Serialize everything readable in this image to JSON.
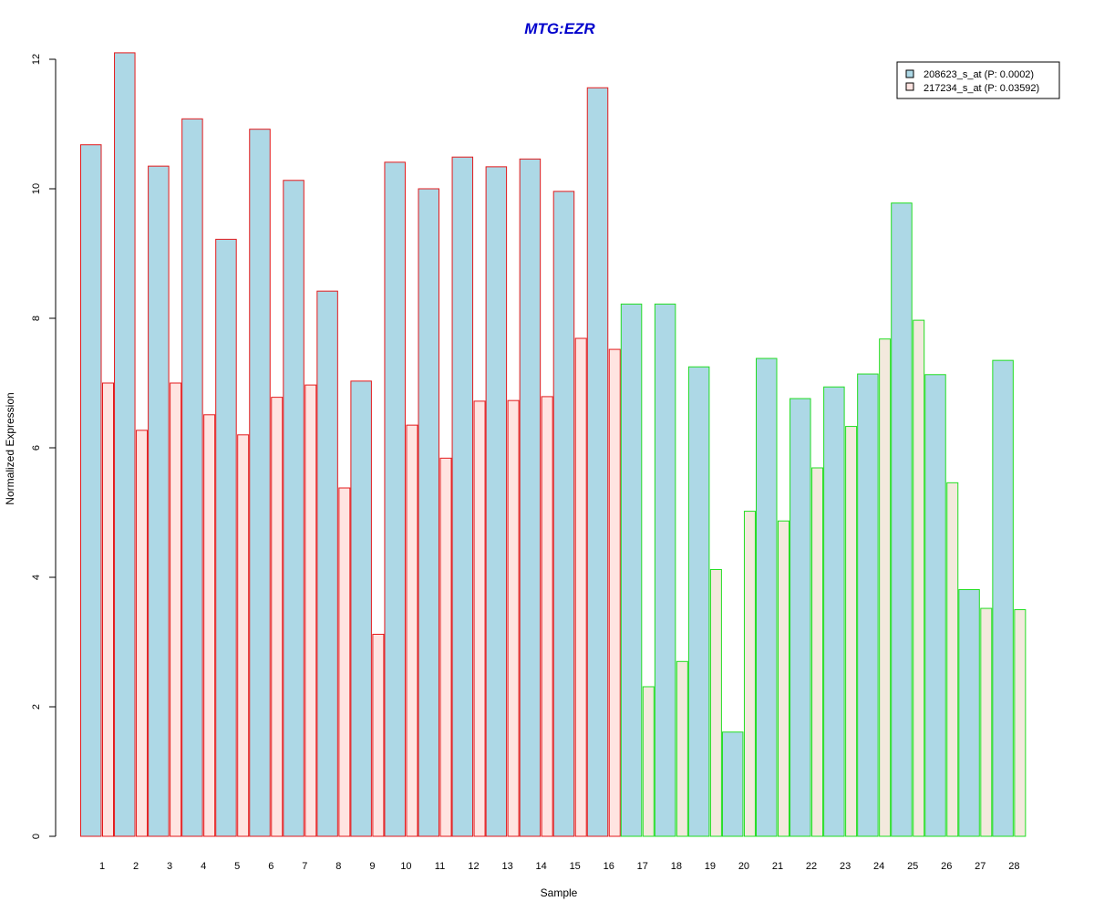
{
  "chart_data": {
    "type": "bar",
    "title": "MTG:EZR",
    "xlabel": "Sample",
    "ylabel": "Normalized Expression",
    "ylim": [
      0,
      12.2
    ],
    "yticks": [
      0,
      2,
      4,
      6,
      8,
      10,
      12
    ],
    "categories": [
      "1",
      "2",
      "3",
      "4",
      "5",
      "6",
      "7",
      "8",
      "9",
      "10",
      "11",
      "12",
      "13",
      "14",
      "15",
      "16",
      "17",
      "18",
      "19",
      "20",
      "21",
      "22",
      "23",
      "24",
      "25",
      "26",
      "27",
      "28"
    ],
    "series": [
      {
        "name": "208623_s_at (P: 0.0002)",
        "fill": "#add8e6",
        "values": [
          10.68,
          12.1,
          10.35,
          11.08,
          9.22,
          10.92,
          10.13,
          8.42,
          7.03,
          10.41,
          10.0,
          10.49,
          10.34,
          10.46,
          9.96,
          11.56,
          8.22,
          8.22,
          7.25,
          1.61,
          7.38,
          6.76,
          6.94,
          7.14,
          9.78,
          7.13,
          3.81,
          7.35
        ]
      },
      {
        "name": "217234_s_at (P: 0.03592)",
        "fill_group1": "#ffe4e1",
        "fill_group2": "#f3e9dd",
        "values": [
          7.0,
          6.27,
          7.0,
          6.51,
          6.2,
          6.78,
          6.97,
          5.38,
          3.12,
          6.35,
          5.84,
          6.72,
          6.73,
          6.79,
          7.69,
          7.52,
          2.31,
          2.7,
          4.12,
          5.02,
          4.87,
          5.69,
          6.33,
          7.68,
          7.97,
          5.46,
          3.52,
          3.5
        ]
      }
    ],
    "groups": [
      {
        "samples": [
          1,
          16
        ],
        "border": "#e31a1c"
      },
      {
        "samples": [
          17,
          28
        ],
        "border": "#22dd22"
      }
    ],
    "legend_position": "top-right",
    "grid": false,
    "title_color": "#0000cc"
  }
}
